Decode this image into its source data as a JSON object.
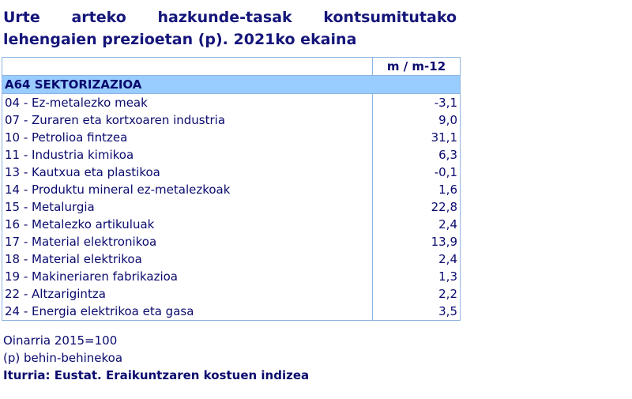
{
  "title": "Urte arteko hazkunde-tasak kontsumitutako lehengaien prezioetan (p). 2021ko ekaina",
  "table": {
    "header": "m / m-12",
    "section": "A64 SEKTORIZAZIOA",
    "rows": [
      [
        "04 - Ez-metalezko meak",
        "-3,1"
      ],
      [
        "07 - Zuraren eta kortxoaren industria",
        "9,0"
      ],
      [
        "10 - Petrolioa fintzea",
        "31,1"
      ],
      [
        "11 - Industria kimikoa",
        "6,3"
      ],
      [
        "13 - Kautxua eta plastikoa",
        "-0,1"
      ],
      [
        "14 - Produktu mineral ez-metalezkoak",
        "1,6"
      ],
      [
        "15 - Metalurgia",
        "22,8"
      ],
      [
        "16 - Metalezko artikuluak",
        "2,4"
      ],
      [
        "17 - Material elektronikoa",
        "13,9"
      ],
      [
        "18 - Material elektrikoa",
        "2,4"
      ],
      [
        "19 - Makineriaren fabrikazioa",
        "1,3"
      ],
      [
        "22 - Altzarigintza",
        "2,2"
      ],
      [
        "24 - Energia elektrikoa eta gasa",
        "3,5"
      ]
    ]
  },
  "notes": [
    "Oinarria 2015=100",
    "(p) behin-behinekoa"
  ],
  "source": "Iturria: Eustat. Eraikuntzaren kostuen indizea"
}
